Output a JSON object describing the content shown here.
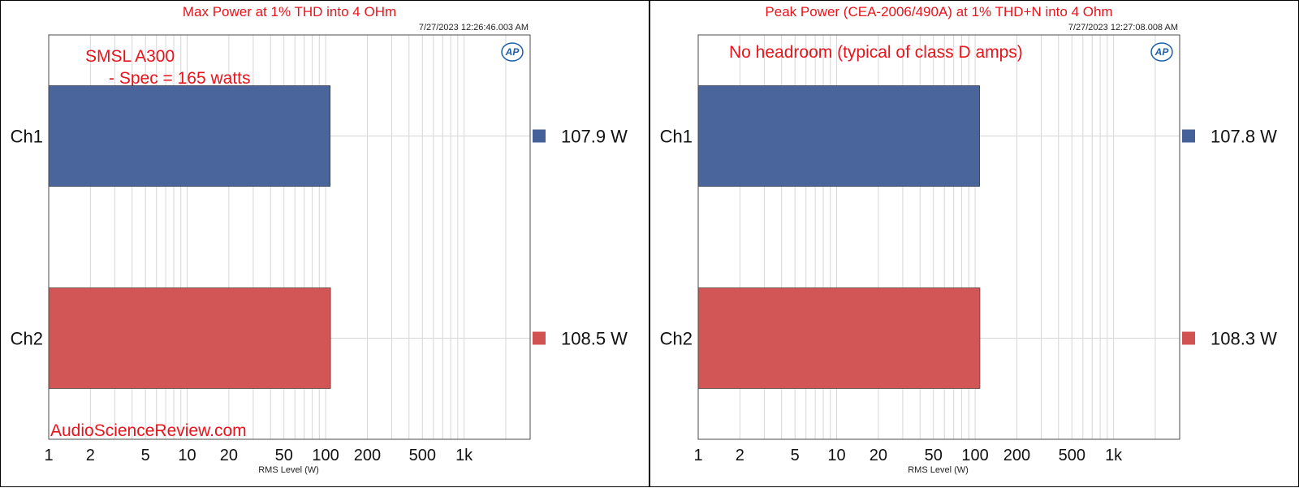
{
  "chart_data": [
    {
      "type": "bar",
      "orientation": "horizontal",
      "title": "Max Power at 1% THD into 4 OHm",
      "timestamp": "7/27/2023 12:26:46.003 AM",
      "xlabel": "RMS Level (W)",
      "xscale": "log",
      "xlim": [
        1,
        3000
      ],
      "x_ticks": [
        1,
        2,
        5,
        10,
        20,
        50,
        100,
        200,
        500,
        1000
      ],
      "x_tick_labels": [
        "1",
        "2",
        "5",
        "10",
        "20",
        "50",
        "100",
        "200",
        "500",
        "1k"
      ],
      "categories": [
        "Ch1",
        "Ch2"
      ],
      "values": [
        107.9,
        108.5
      ],
      "value_labels": [
        "107.9  W",
        "108.5  W"
      ],
      "colors": [
        "#46619a",
        "#d05352"
      ],
      "grid": true,
      "legend": "right",
      "annotations": [
        "SMSL A300",
        "- Spec = 165 watts"
      ],
      "watermark": "AudioScienceReview.com",
      "logo": "AP"
    },
    {
      "type": "bar",
      "orientation": "horizontal",
      "title": "Peak Power (CEA-2006/490A) at 1% THD+N into 4 Ohm",
      "timestamp": "7/27/2023 12:27:08.008 AM",
      "xlabel": "RMS Level (W)",
      "xscale": "log",
      "xlim": [
        1,
        3000
      ],
      "x_ticks": [
        1,
        2,
        5,
        10,
        20,
        50,
        100,
        200,
        500,
        1000
      ],
      "x_tick_labels": [
        "1",
        "2",
        "5",
        "10",
        "20",
        "50",
        "100",
        "200",
        "500",
        "1k"
      ],
      "categories": [
        "Ch1",
        "Ch2"
      ],
      "values": [
        107.8,
        108.3
      ],
      "value_labels": [
        "107.8  W",
        "108.3  W"
      ],
      "colors": [
        "#46619a",
        "#d05352"
      ],
      "grid": true,
      "legend": "right",
      "annotations": [
        "No headroom (typical of class D amps)"
      ],
      "watermark": "",
      "logo": "AP"
    }
  ]
}
